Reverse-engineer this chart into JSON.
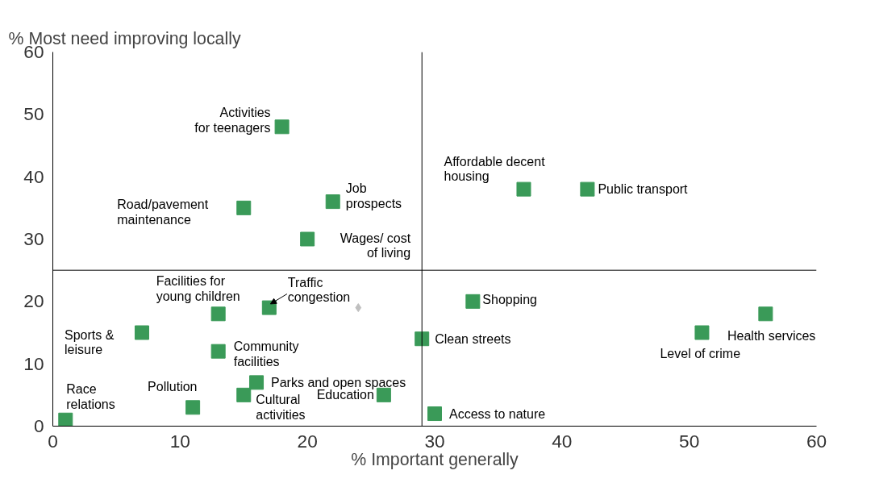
{
  "chart_data": {
    "type": "scatter",
    "xlabel": "% Important generally",
    "ylabel": "% Most need improving locally",
    "xlim": [
      0,
      60
    ],
    "ylim": [
      0,
      60
    ],
    "xticks": [
      0,
      10,
      20,
      30,
      40,
      50,
      60
    ],
    "yticks": [
      0,
      10,
      20,
      30,
      40,
      50,
      60
    ],
    "marker": "square",
    "series": [
      {
        "color": "#3a9a58",
        "x": [
          18,
          37,
          42,
          15,
          22,
          20,
          13,
          17,
          33,
          56,
          51,
          7,
          13,
          29,
          16,
          15,
          26,
          11,
          1,
          30
        ],
        "values": [
          48,
          38,
          38,
          35,
          36,
          30,
          18,
          19,
          20,
          18,
          15,
          15,
          12,
          14,
          7,
          5,
          5,
          3,
          1,
          2
        ]
      },
      {
        "color": "#bfbfbf",
        "marker": "diamond",
        "x": [
          24
        ],
        "values": [
          19
        ]
      }
    ],
    "ref_lines": [
      {
        "axis": "x",
        "value": 29,
        "color": "#000000"
      },
      {
        "axis": "y",
        "value": 25,
        "color": "#000000"
      }
    ],
    "annotations": [
      {
        "text": "Activities\nfor teenagers",
        "x": 18,
        "y": 48
      },
      {
        "text": "Affordable decent\nhousing",
        "x": 37,
        "y": 38
      },
      {
        "text": "Public transport",
        "x": 42,
        "y": 38
      },
      {
        "text": "Road/pavement\nmaintenance",
        "x": 15,
        "y": 35
      },
      {
        "text": "Job\nprospects",
        "x": 22,
        "y": 36
      },
      {
        "text": "Wages/ cost\nof living",
        "x": 20,
        "y": 30
      },
      {
        "text": "Facilities for\nyoung children",
        "x": 13,
        "y": 18
      },
      {
        "text": "Traffic\ncongestion",
        "x": 17,
        "y": 19
      },
      {
        "text": "Shopping",
        "x": 33,
        "y": 20
      },
      {
        "text": "Health services",
        "x": 56,
        "y": 18
      },
      {
        "text": "Level of crime",
        "x": 51,
        "y": 15
      },
      {
        "text": "Sports &\nleisure",
        "x": 7,
        "y": 15
      },
      {
        "text": "Community\nfacilities",
        "x": 13,
        "y": 12
      },
      {
        "text": "Clean streets",
        "x": 29,
        "y": 14
      },
      {
        "text": "Parks and open spaces",
        "x": 16,
        "y": 7
      },
      {
        "text": "Cultural\nactivities",
        "x": 15,
        "y": 5
      },
      {
        "text": "Education",
        "x": 26,
        "y": 5
      },
      {
        "text": "Pollution",
        "x": 11,
        "y": 3
      },
      {
        "text": "Race\nrelations",
        "x": 1,
        "y": 1
      },
      {
        "text": "Access to nature",
        "x": 30,
        "y": 2
      }
    ]
  }
}
